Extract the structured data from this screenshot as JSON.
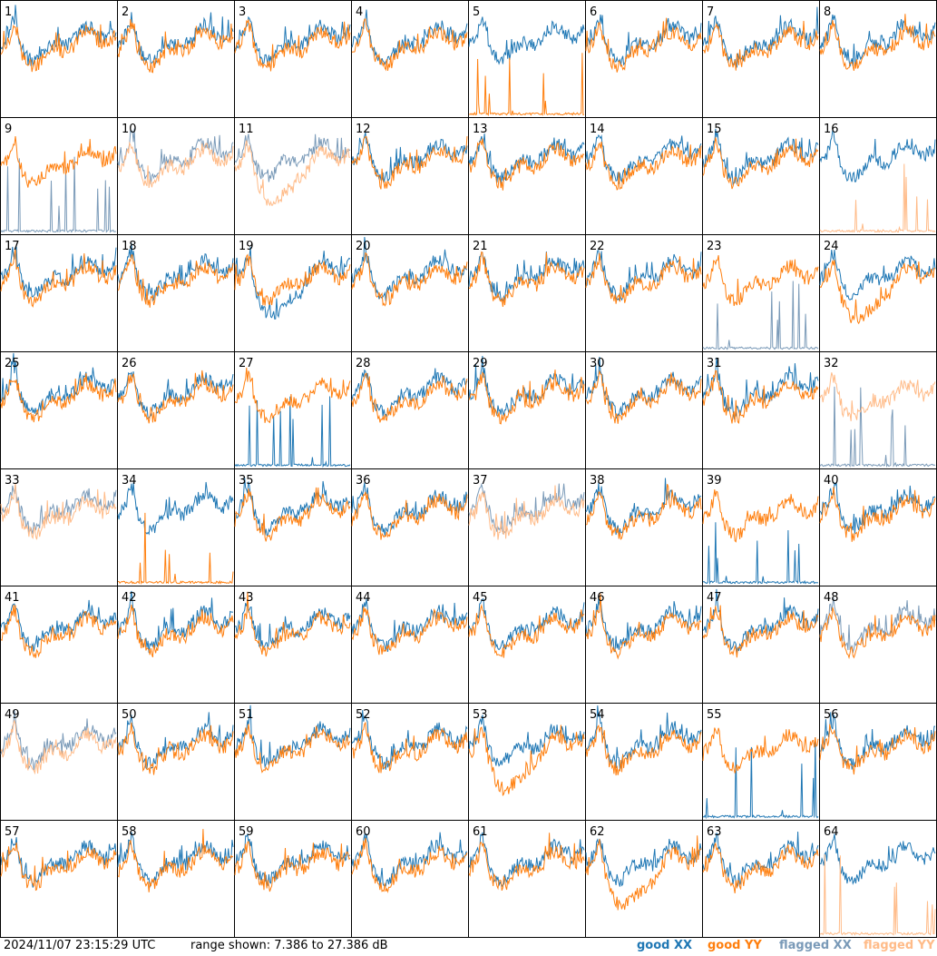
{
  "timestamp": "2024/11/07 23:15:29 UTC",
  "range_label": "range shown: 7.386 to 27.386 dB",
  "legend": [
    {
      "label": "good XX",
      "color": "#1f77b4"
    },
    {
      "label": "good YY",
      "color": "#ff7f0e"
    },
    {
      "label": "flagged XX",
      "color": "#7a9ab8"
    },
    {
      "label": "flagged YY",
      "color": "#ffbb88"
    }
  ],
  "chart_data": {
    "type": "line",
    "title": "",
    "grid_rows": 8,
    "grid_cols": 8,
    "ylim": [
      7.386,
      27.386
    ],
    "yunit": "dB",
    "series_names": [
      "good XX",
      "good YY",
      "flagged XX",
      "flagged YY"
    ],
    "panels": [
      {
        "n": 1,
        "xx": "good",
        "yy": "good"
      },
      {
        "n": 2,
        "xx": "good",
        "yy": "good"
      },
      {
        "n": 3,
        "xx": "good",
        "yy": "good"
      },
      {
        "n": 4,
        "xx": "good",
        "yy": "good"
      },
      {
        "n": 5,
        "xx": "good",
        "yy": "good",
        "yy_spiky": true
      },
      {
        "n": 6,
        "xx": "good",
        "yy": "good"
      },
      {
        "n": 7,
        "xx": "good",
        "yy": "good"
      },
      {
        "n": 8,
        "xx": "good",
        "yy": "good"
      },
      {
        "n": 9,
        "xx": "flagged",
        "yy": "good",
        "xx_spiky": true
      },
      {
        "n": 10,
        "xx": "flagged",
        "yy": "flagged"
      },
      {
        "n": 11,
        "xx": "flagged",
        "yy": "flagged",
        "yy_dip": true
      },
      {
        "n": 12,
        "xx": "good",
        "yy": "good"
      },
      {
        "n": 13,
        "xx": "good",
        "yy": "good"
      },
      {
        "n": 14,
        "xx": "good",
        "yy": "good"
      },
      {
        "n": 15,
        "xx": "good",
        "yy": "good"
      },
      {
        "n": 16,
        "xx": "good",
        "yy": "flagged",
        "yy_spiky": true
      },
      {
        "n": 17,
        "xx": "good",
        "yy": "good"
      },
      {
        "n": 18,
        "xx": "good",
        "yy": "good"
      },
      {
        "n": 19,
        "xx": "good",
        "yy": "good",
        "xx_dip": true
      },
      {
        "n": 20,
        "xx": "good",
        "yy": "good"
      },
      {
        "n": 21,
        "xx": "good",
        "yy": "good"
      },
      {
        "n": 22,
        "xx": "good",
        "yy": "good"
      },
      {
        "n": 23,
        "xx": "flagged",
        "yy": "good",
        "xx_spiky": true
      },
      {
        "n": 24,
        "xx": "good",
        "yy": "good",
        "yy_dip": true
      },
      {
        "n": 25,
        "xx": "good",
        "yy": "good"
      },
      {
        "n": 26,
        "xx": "good",
        "yy": "good"
      },
      {
        "n": 27,
        "xx": "good",
        "yy": "good",
        "xx_spiky": true
      },
      {
        "n": 28,
        "xx": "good",
        "yy": "good"
      },
      {
        "n": 29,
        "xx": "good",
        "yy": "good"
      },
      {
        "n": 30,
        "xx": "good",
        "yy": "good"
      },
      {
        "n": 31,
        "xx": "good",
        "yy": "good"
      },
      {
        "n": 32,
        "xx": "flagged",
        "yy": "flagged",
        "xx_spiky": true
      },
      {
        "n": 33,
        "xx": "flagged",
        "yy": "flagged"
      },
      {
        "n": 34,
        "xx": "good",
        "yy": "good",
        "yy_spiky": true
      },
      {
        "n": 35,
        "xx": "good",
        "yy": "good"
      },
      {
        "n": 36,
        "xx": "good",
        "yy": "good"
      },
      {
        "n": 37,
        "xx": "flagged",
        "yy": "flagged"
      },
      {
        "n": 38,
        "xx": "good",
        "yy": "good"
      },
      {
        "n": 39,
        "xx": "good",
        "yy": "good",
        "xx_spiky": true
      },
      {
        "n": 40,
        "xx": "good",
        "yy": "good"
      },
      {
        "n": 41,
        "xx": "good",
        "yy": "good"
      },
      {
        "n": 42,
        "xx": "good",
        "yy": "good"
      },
      {
        "n": 43,
        "xx": "good",
        "yy": "good"
      },
      {
        "n": 44,
        "xx": "good",
        "yy": "good"
      },
      {
        "n": 45,
        "xx": "good",
        "yy": "good"
      },
      {
        "n": 46,
        "xx": "good",
        "yy": "good"
      },
      {
        "n": 47,
        "xx": "good",
        "yy": "good"
      },
      {
        "n": 48,
        "xx": "flagged",
        "yy": "good"
      },
      {
        "n": 49,
        "xx": "flagged",
        "yy": "flagged"
      },
      {
        "n": 50,
        "xx": "good",
        "yy": "good"
      },
      {
        "n": 51,
        "xx": "good",
        "yy": "good"
      },
      {
        "n": 52,
        "xx": "good",
        "yy": "good"
      },
      {
        "n": 53,
        "xx": "good",
        "yy": "good",
        "yy_dip": true
      },
      {
        "n": 54,
        "xx": "good",
        "yy": "good"
      },
      {
        "n": 55,
        "xx": "good",
        "yy": "good",
        "xx_spiky": true
      },
      {
        "n": 56,
        "xx": "good",
        "yy": "good"
      },
      {
        "n": 57,
        "xx": "good",
        "yy": "good"
      },
      {
        "n": 58,
        "xx": "good",
        "yy": "good"
      },
      {
        "n": 59,
        "xx": "good",
        "yy": "good"
      },
      {
        "n": 60,
        "xx": "good",
        "yy": "good"
      },
      {
        "n": 61,
        "xx": "good",
        "yy": "good"
      },
      {
        "n": 62,
        "xx": "good",
        "yy": "good",
        "yy_dip": true
      },
      {
        "n": 63,
        "xx": "good",
        "yy": "good"
      },
      {
        "n": 64,
        "xx": "good",
        "yy": "flagged",
        "yy_spiky": true
      }
    ]
  }
}
